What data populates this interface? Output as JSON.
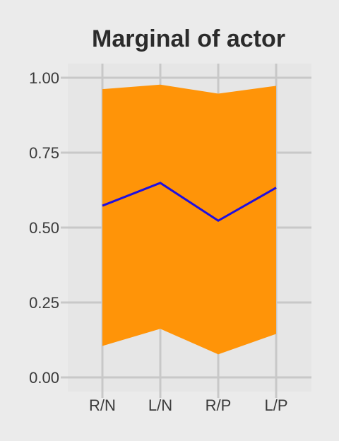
{
  "chart_data": {
    "type": "area",
    "title": "Marginal of actor",
    "xlabel": "",
    "ylabel": "",
    "categories": [
      "R/N",
      "L/N",
      "R/P",
      "L/P"
    ],
    "ylim": [
      0,
      1
    ],
    "yticks": [
      0,
      0.25,
      0.5,
      0.75,
      1
    ],
    "ytick_labels": [
      "0.00",
      "0.25",
      "0.50",
      "0.75",
      "1.00"
    ],
    "grid": true,
    "series": [
      {
        "kind": "band",
        "lower": [
          0.105,
          0.162,
          0.077,
          0.145
        ],
        "upper": [
          0.962,
          0.977,
          0.947,
          0.973
        ]
      },
      {
        "kind": "line",
        "values": [
          0.573,
          0.649,
          0.523,
          0.633
        ]
      }
    ],
    "colors": {
      "band": "#ff9408",
      "line": "#1f0fe0",
      "grid": "#c8c8c8",
      "panel": "#e6e6e6",
      "background": "#ebebeb"
    }
  }
}
